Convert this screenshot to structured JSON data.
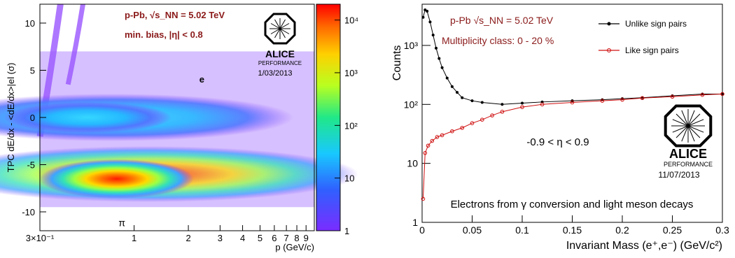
{
  "chart_data": [
    {
      "type": "heatmap",
      "title_lines": [
        "p-Pb, √s_NN = 5.02 TeV",
        "min. bias, |η| < 0.8"
      ],
      "xlabel": "p (GeV/c)",
      "ylabel": "TPC dE/dx - <dE/dx>|el (σ)",
      "x_scale": "log",
      "xlim": [
        0.3,
        10
      ],
      "ylim": [
        -12,
        12
      ],
      "x_ticks": [
        "3×10⁻¹",
        "1",
        "2",
        "3",
        "4",
        "5",
        "6",
        "7",
        "8",
        "9"
      ],
      "y_ticks": [
        "10",
        "5",
        "0",
        "-5",
        "-10"
      ],
      "z_scale": "log",
      "zlim": [
        1,
        20000
      ],
      "colorbar_ticks": [
        "10⁴",
        "10³",
        "10²",
        "10",
        "1"
      ],
      "annotations": [
        "e",
        "π"
      ],
      "logo": {
        "name": "ALICE",
        "sub": "PERFORMANCE",
        "date": "1/03/2013"
      },
      "bands": [
        {
          "label": "e",
          "y": 0,
          "from_p": 0.3,
          "to_p": 10
        },
        {
          "label": "π",
          "y": -6.5,
          "from_p": 0.3,
          "to_p": 10
        }
      ]
    },
    {
      "type": "scatter",
      "title_lines": [
        "p-Pb √s_NN = 5.02 TeV",
        "Multiplicity class: 0 - 20 %"
      ],
      "xlabel": "Invariant Mass (e⁺,e⁻) (GeV/c²)",
      "ylabel": "Counts",
      "y_scale": "log",
      "xlim": [
        0,
        0.3
      ],
      "ylim": [
        1,
        5000
      ],
      "x_ticks": [
        "0",
        "0.05",
        "0.1",
        "0.15",
        "0.2",
        "0.25",
        "0.3"
      ],
      "y_ticks": [
        "10³",
        "10²",
        "10",
        "1"
      ],
      "annotations": [
        "-0.9 < η < 0.9",
        "Electrons from γ conversion and light meson decays"
      ],
      "logo": {
        "name": "ALICE",
        "sub": "PERFORMANCE",
        "date": "11/07/2013"
      },
      "legend_position": "top-right",
      "series": [
        {
          "name": "Unlike sign pairs",
          "color": "#000000",
          "x": [
            0.001,
            0.003,
            0.005,
            0.008,
            0.011,
            0.014,
            0.017,
            0.02,
            0.025,
            0.03,
            0.035,
            0.04,
            0.05,
            0.06,
            0.08,
            0.1,
            0.12,
            0.15,
            0.18,
            0.2,
            0.22,
            0.25,
            0.28,
            0.3
          ],
          "y": [
            3000,
            4000,
            3800,
            2500,
            1500,
            900,
            600,
            420,
            280,
            200,
            160,
            130,
            115,
            108,
            100,
            105,
            110,
            115,
            120,
            125,
            130,
            140,
            150,
            150
          ]
        },
        {
          "name": "Like sign pairs",
          "color": "#d01010",
          "x": [
            0.001,
            0.003,
            0.006,
            0.01,
            0.015,
            0.02,
            0.03,
            0.04,
            0.05,
            0.06,
            0.07,
            0.08,
            0.1,
            0.12,
            0.15,
            0.18,
            0.2,
            0.22,
            0.25,
            0.28,
            0.3
          ],
          "y": [
            2.5,
            15,
            20,
            24,
            28,
            30,
            35,
            40,
            48,
            55,
            65,
            75,
            90,
            100,
            108,
            115,
            120,
            128,
            135,
            145,
            150
          ]
        }
      ]
    }
  ]
}
